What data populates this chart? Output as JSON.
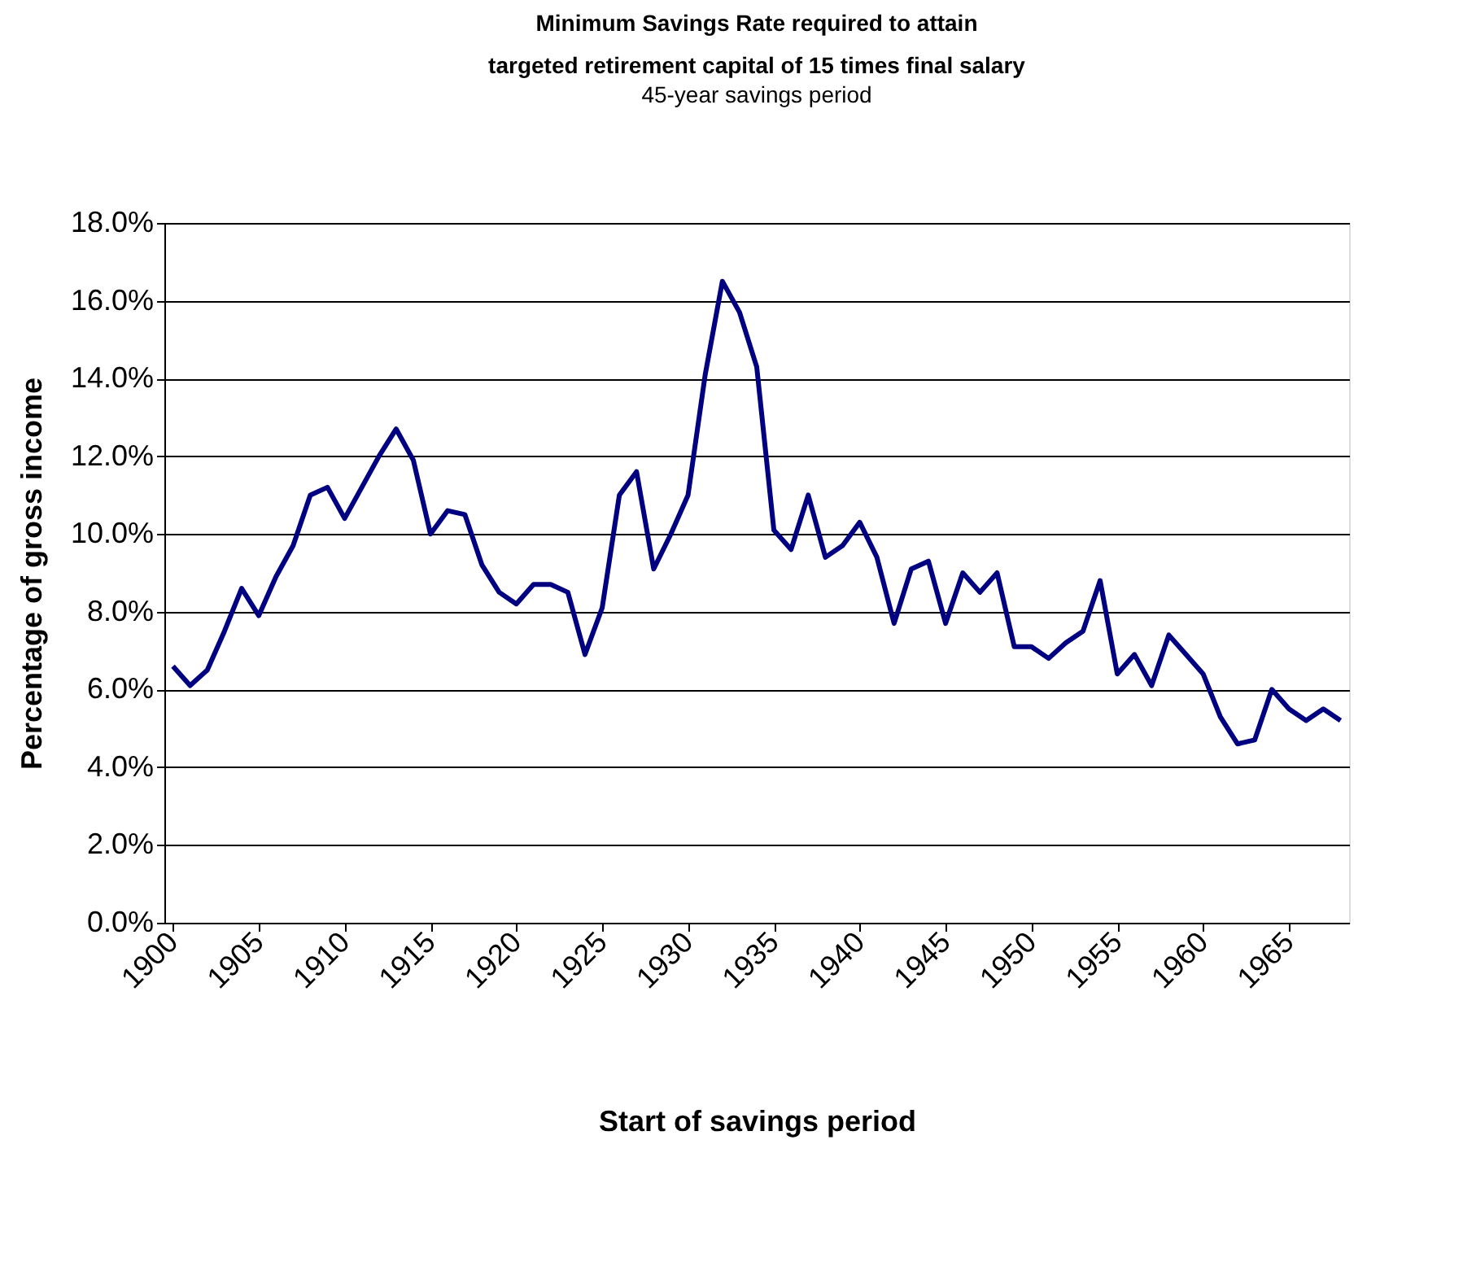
{
  "chart_data": {
    "type": "line",
    "title": [
      "Minimum Savings Rate required to attain",
      "targeted retirement capital of 15 times final salary"
    ],
    "subtitle": "45-year savings period",
    "xlabel": "Start of savings period",
    "ylabel": "Percentage of gross income",
    "x": [
      1900,
      1901,
      1902,
      1903,
      1904,
      1905,
      1906,
      1907,
      1908,
      1909,
      1910,
      1911,
      1912,
      1913,
      1914,
      1915,
      1916,
      1917,
      1918,
      1919,
      1920,
      1921,
      1922,
      1923,
      1924,
      1925,
      1926,
      1927,
      1928,
      1929,
      1930,
      1931,
      1932,
      1933,
      1934,
      1935,
      1936,
      1937,
      1938,
      1939,
      1940,
      1941,
      1942,
      1943,
      1944,
      1945,
      1946,
      1947,
      1948,
      1949,
      1950,
      1951,
      1952,
      1953,
      1954,
      1955,
      1956,
      1957,
      1958,
      1959,
      1960,
      1961,
      1962,
      1963,
      1964,
      1965,
      1966,
      1967,
      1968
    ],
    "series": [
      {
        "color": "#000080",
        "values": [
          6.6,
          6.1,
          6.5,
          7.5,
          8.6,
          7.9,
          8.9,
          9.7,
          11.0,
          11.2,
          10.4,
          11.2,
          12.0,
          12.7,
          11.9,
          10.0,
          10.6,
          10.5,
          9.2,
          8.5,
          8.2,
          8.7,
          8.7,
          8.5,
          6.9,
          8.1,
          11.0,
          11.6,
          9.1,
          10.0,
          11.0,
          14.1,
          16.5,
          15.7,
          14.3,
          10.1,
          9.6,
          11.0,
          9.4,
          9.7,
          10.3,
          9.4,
          7.7,
          9.1,
          9.3,
          7.7,
          9.0,
          8.5,
          9.0,
          7.1,
          7.1,
          6.8,
          7.2,
          7.5,
          8.8,
          6.4,
          6.9,
          6.1,
          7.4,
          6.9,
          6.4,
          5.3,
          4.6,
          4.7,
          6.0,
          5.5,
          5.2,
          5.5,
          5.2
        ]
      }
    ],
    "xlim": [
      1899.5,
      1968.5
    ],
    "xticks": [
      1900,
      1905,
      1910,
      1915,
      1920,
      1925,
      1930,
      1935,
      1940,
      1945,
      1950,
      1955,
      1960,
      1965
    ],
    "ylim": [
      0,
      18
    ],
    "yticks": [
      {
        "value": 0,
        "label": "0.0%"
      },
      {
        "value": 2,
        "label": "2.0%"
      },
      {
        "value": 4,
        "label": "4.0%"
      },
      {
        "value": 6,
        "label": "6.0%"
      },
      {
        "value": 8,
        "label": "8.0%"
      },
      {
        "value": 10,
        "label": "10.0%"
      },
      {
        "value": 12,
        "label": "12.0%"
      },
      {
        "value": 14,
        "label": "14.0%"
      },
      {
        "value": 16,
        "label": "16.0%"
      },
      {
        "value": 18,
        "label": "18.0%"
      }
    ],
    "grid": "y",
    "legend": false,
    "marker": "none",
    "line_style": "solid"
  }
}
